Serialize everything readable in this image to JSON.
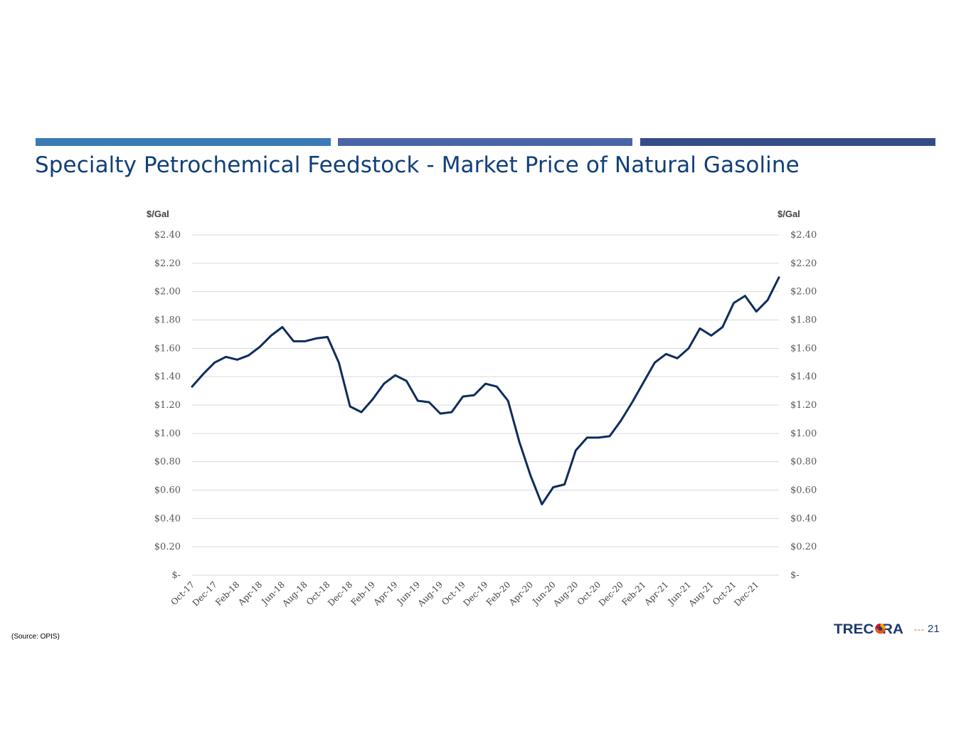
{
  "page": {
    "title": "Specialty Petrochemical Feedstock - Market Price of Natural Gasoline",
    "source": "(Source: OPIS)",
    "page_number": "21",
    "page_dashes": "---",
    "logo_text": "TRECORA"
  },
  "colors": {
    "line": "#0e2d5c",
    "title": "#103f7a",
    "bar1": "#3a7bb5",
    "bar2": "#4a64a8",
    "bar3": "#354d86"
  },
  "chart_data": {
    "type": "line",
    "title": "",
    "ylabel_left": "$/Gal",
    "ylabel_right": "$/Gal",
    "ylim": [
      0,
      2.4
    ],
    "yticks": [
      0,
      0.2,
      0.4,
      0.6,
      0.8,
      1.0,
      1.2,
      1.4,
      1.6,
      1.8,
      2.0,
      2.2,
      2.4
    ],
    "ytick_labels": [
      "$-",
      "$0.20",
      "$0.40",
      "$0.60",
      "$0.80",
      "$1.00",
      "$1.20",
      "$1.40",
      "$1.60",
      "$1.80",
      "$2.00",
      "$2.20",
      "$2.40"
    ],
    "xtick_labels": [
      "Oct-17",
      "Dec-17",
      "Feb-18",
      "Apr-18",
      "Jun-18",
      "Aug-18",
      "Oct-18",
      "Dec-18",
      "Feb-19",
      "Apr-19",
      "Jun-19",
      "Aug-19",
      "Oct-19",
      "Dec-19",
      "Feb-20",
      "Apr-20",
      "Jun-20",
      "Aug-20",
      "Oct-20",
      "Dec-20",
      "Feb-21",
      "Apr-21",
      "Jun-21",
      "Aug-21",
      "Oct-21",
      "Dec-21"
    ],
    "grid": true,
    "series": [
      {
        "name": "Natural Gasoline",
        "x": [
          "Oct-17",
          "Nov-17",
          "Dec-17",
          "Jan-18",
          "Feb-18",
          "Mar-18",
          "Apr-18",
          "May-18",
          "Jun-18",
          "Jul-18",
          "Aug-18",
          "Sep-18",
          "Oct-18",
          "Nov-18",
          "Dec-18",
          "Jan-19",
          "Feb-19",
          "Mar-19",
          "Apr-19",
          "May-19",
          "Jun-19",
          "Jul-19",
          "Aug-19",
          "Sep-19",
          "Oct-19",
          "Nov-19",
          "Dec-19",
          "Jan-20",
          "Feb-20",
          "Mar-20",
          "Apr-20",
          "May-20",
          "Jun-20",
          "Jul-20",
          "Aug-20",
          "Sep-20",
          "Oct-20",
          "Nov-20",
          "Dec-20",
          "Jan-21",
          "Feb-21",
          "Mar-21",
          "Apr-21",
          "May-21",
          "Jun-21",
          "Jul-21",
          "Aug-21",
          "Sep-21",
          "Oct-21",
          "Nov-21",
          "Dec-21",
          "Jan-22",
          "Feb-22"
        ],
        "values": [
          1.33,
          1.42,
          1.5,
          1.54,
          1.52,
          1.55,
          1.61,
          1.69,
          1.75,
          1.65,
          1.65,
          1.67,
          1.68,
          1.5,
          1.19,
          1.15,
          1.24,
          1.35,
          1.41,
          1.37,
          1.23,
          1.22,
          1.14,
          1.15,
          1.26,
          1.27,
          1.35,
          1.33,
          1.23,
          0.94,
          0.7,
          0.5,
          0.62,
          0.64,
          0.88,
          0.97,
          0.97,
          0.98,
          1.09,
          1.22,
          1.36,
          1.5,
          1.56,
          1.53,
          1.6,
          1.74,
          1.69,
          1.75,
          1.92,
          1.97,
          1.86,
          1.94,
          2.1
        ]
      }
    ]
  }
}
